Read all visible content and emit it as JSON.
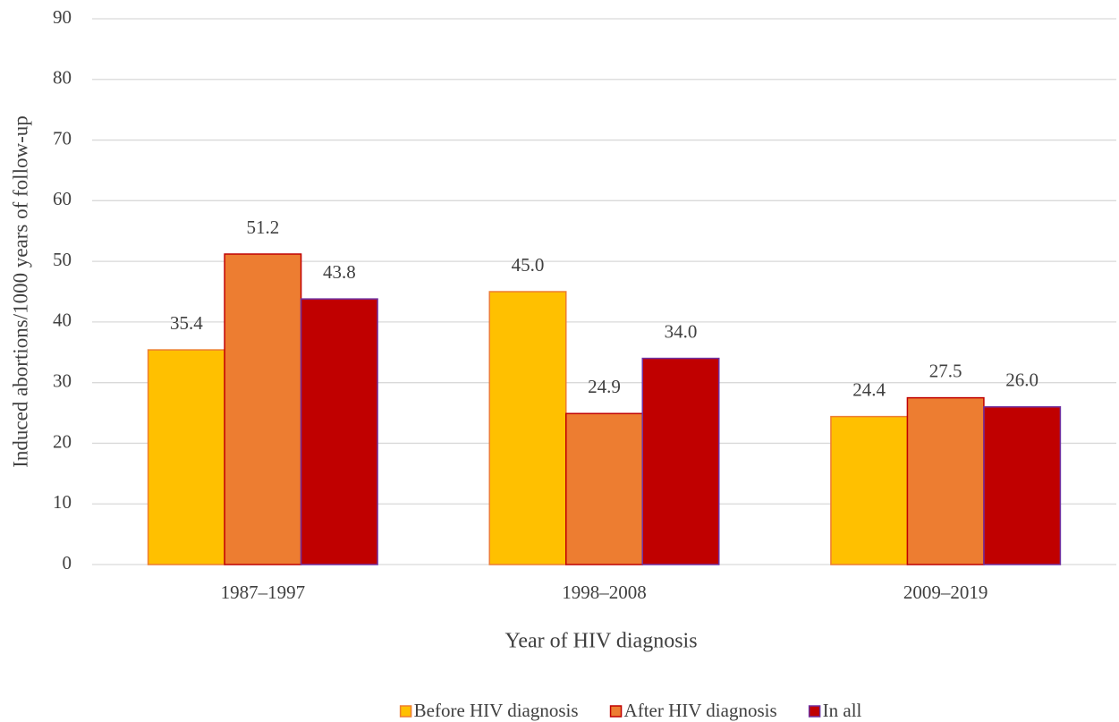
{
  "chart_data": {
    "type": "bar",
    "categories": [
      "1987–1997",
      "1998–2008",
      "2009–2019"
    ],
    "series": [
      {
        "name": "Before HIV diagnosis",
        "color": "#FFC000",
        "edgecolor": "#ED7D31",
        "values": [
          35.4,
          45.0,
          24.4
        ],
        "value_labels": [
          "35.4",
          "45.0",
          "24.4"
        ]
      },
      {
        "name": "After HIV diagnosis",
        "color": "#ED7D31",
        "edgecolor": "#C00000",
        "values": [
          51.2,
          24.9,
          27.5
        ],
        "value_labels": [
          "51.2",
          "24.9",
          "27.5"
        ]
      },
      {
        "name": "In all",
        "color": "#C00000",
        "edgecolor": "#7030A0",
        "values": [
          43.8,
          34.0,
          26.0
        ],
        "value_labels": [
          "43.8",
          "34.0",
          "26.0"
        ]
      }
    ],
    "xlabel": "Year of HIV diagnosis",
    "ylabel": "Induced abortions/1000 years of follow-up",
    "ylim": [
      0,
      90
    ],
    "yticks": [
      0,
      10,
      20,
      30,
      40,
      50,
      60,
      70,
      80,
      90
    ],
    "grid": true,
    "legend": "bottom"
  }
}
